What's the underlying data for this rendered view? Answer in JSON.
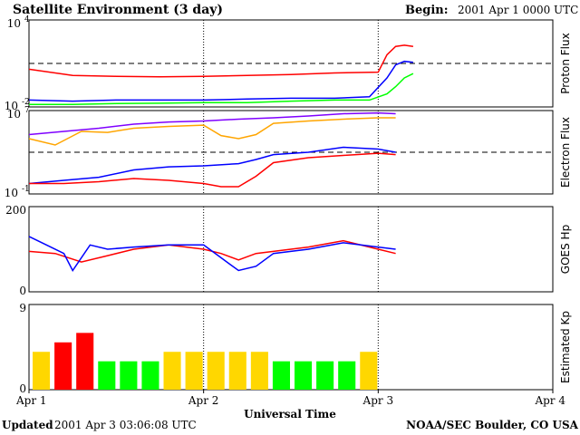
{
  "header": {
    "title": "Satellite Environment (3 day)",
    "begin_label": "Begin:",
    "begin_value": "2001 Apr 1 0000 UTC"
  },
  "footer": {
    "updated_label": "Updated",
    "updated_value": "2001 Apr  3 03:06:08 UTC",
    "credit": "NOAA/SEC Boulder, CO USA"
  },
  "chart_data": [
    {
      "type": "line",
      "ylabel": "Proton Flux",
      "yscale": "log",
      "ylim": [
        0.01,
        10000
      ],
      "ytick_labels": [
        "10",
        "10"
      ],
      "ytick_exponents": [
        "4",
        "-2"
      ],
      "threshold": 10,
      "series": [
        {
          "color": "#ff0000",
          "x": [
            0,
            0.25,
            0.5,
            0.75,
            1.0,
            1.25,
            1.5,
            1.75,
            2.0,
            2.05,
            2.1,
            2.15,
            2.2
          ],
          "y": [
            4,
            1.5,
            1.3,
            1.2,
            1.3,
            1.5,
            1.7,
            2.2,
            2.5,
            40,
            150,
            180,
            150
          ]
        },
        {
          "color": "#0000ff",
          "x": [
            0,
            0.25,
            0.5,
            0.75,
            1.0,
            1.25,
            1.5,
            1.75,
            1.95,
            2.05,
            2.1,
            2.15,
            2.2
          ],
          "y": [
            0.03,
            0.025,
            0.03,
            0.03,
            0.03,
            0.035,
            0.04,
            0.04,
            0.05,
            1,
            8,
            14,
            12
          ]
        },
        {
          "color": "#00ff00",
          "x": [
            0,
            0.25,
            0.5,
            0.75,
            1.0,
            1.25,
            1.5,
            1.75,
            1.95,
            2.05,
            2.1,
            2.15,
            2.2
          ],
          "y": [
            0.015,
            0.015,
            0.017,
            0.018,
            0.02,
            0.02,
            0.025,
            0.03,
            0.03,
            0.08,
            0.25,
            1,
            2
          ]
        }
      ]
    },
    {
      "type": "line",
      "ylabel": "Electron Flux",
      "yscale": "log",
      "ylim": [
        0.1,
        10000000
      ],
      "ytick_labels": [
        "10",
        "10"
      ],
      "ytick_exponents": [
        "7",
        "-1"
      ],
      "threshold": 1000,
      "series": [
        {
          "color": "#7f00ff",
          "x": [
            0,
            0.2,
            0.4,
            0.6,
            0.8,
            1.0,
            1.2,
            1.4,
            1.6,
            1.8,
            2.0,
            2.1
          ],
          "y": [
            50000,
            100000,
            200000,
            500000,
            800000,
            1000000,
            1500000,
            2000000,
            3000000,
            5000000,
            6000000,
            5000000
          ]
        },
        {
          "color": "#ffa500",
          "x": [
            0,
            0.15,
            0.3,
            0.45,
            0.6,
            0.8,
            1.0,
            1.1,
            1.2,
            1.3,
            1.4,
            1.6,
            1.8,
            2.0,
            2.1
          ],
          "y": [
            20000,
            5000,
            100000,
            80000,
            200000,
            300000,
            400000,
            40000,
            20000,
            50000,
            600000,
            1000000,
            1500000,
            2000000,
            2000000
          ]
        },
        {
          "color": "#0000ff",
          "x": [
            0,
            0.2,
            0.4,
            0.6,
            0.8,
            1.0,
            1.2,
            1.3,
            1.4,
            1.6,
            1.8,
            2.0,
            2.1
          ],
          "y": [
            1,
            2,
            4,
            20,
            40,
            50,
            80,
            200,
            600,
            1000,
            3000,
            2000,
            1000
          ]
        },
        {
          "color": "#ff0000",
          "x": [
            0,
            0.2,
            0.4,
            0.6,
            0.8,
            1.0,
            1.1,
            1.2,
            1.3,
            1.4,
            1.6,
            1.8,
            2.0,
            2.1
          ],
          "y": [
            1,
            1,
            1.5,
            3,
            2,
            1,
            0.5,
            0.5,
            5,
            100,
            300,
            500,
            800,
            600
          ]
        }
      ]
    },
    {
      "type": "line",
      "ylabel": "GOES Hp",
      "ylim": [
        0,
        200
      ],
      "ytick_labels": [
        "200",
        "0"
      ],
      "series": [
        {
          "color": "#ff0000",
          "x": [
            0,
            0.15,
            0.3,
            0.45,
            0.6,
            0.8,
            1.0,
            1.1,
            1.2,
            1.3,
            1.4,
            1.6,
            1.8,
            2.0,
            2.1
          ],
          "y": [
            95,
            90,
            70,
            85,
            100,
            110,
            100,
            90,
            75,
            90,
            95,
            105,
            120,
            100,
            90
          ]
        },
        {
          "color": "#0000ff",
          "x": [
            0,
            0.1,
            0.2,
            0.25,
            0.35,
            0.45,
            0.6,
            0.8,
            1.0,
            1.1,
            1.2,
            1.3,
            1.4,
            1.6,
            1.8,
            2.0,
            2.1
          ],
          "y": [
            130,
            110,
            90,
            50,
            110,
            100,
            105,
            110,
            110,
            80,
            50,
            60,
            90,
            100,
            115,
            105,
            100
          ]
        }
      ]
    },
    {
      "type": "bar",
      "ylabel": "Estimated Kp",
      "ylim": [
        0,
        9
      ],
      "ytick_labels": [
        "9",
        "0"
      ],
      "bar_width_days": 0.125,
      "values": [
        4,
        5,
        6,
        3,
        3,
        3,
        4,
        4,
        4,
        4,
        4,
        3,
        3,
        3,
        3,
        4
      ],
      "colors": [
        "#ffd700",
        "#ff0000",
        "#ff0000",
        "#00ff00",
        "#00ff00",
        "#00ff00",
        "#ffd700",
        "#ffd700",
        "#ffd700",
        "#ffd700",
        "#ffd700",
        "#00ff00",
        "#00ff00",
        "#00ff00",
        "#00ff00",
        "#ffd700"
      ]
    }
  ],
  "x_axis": {
    "label": "Universal Time",
    "ticks": [
      "Apr 1",
      "Apr 2",
      "Apr 3",
      "Apr 4"
    ],
    "markers": [
      1,
      2
    ]
  }
}
